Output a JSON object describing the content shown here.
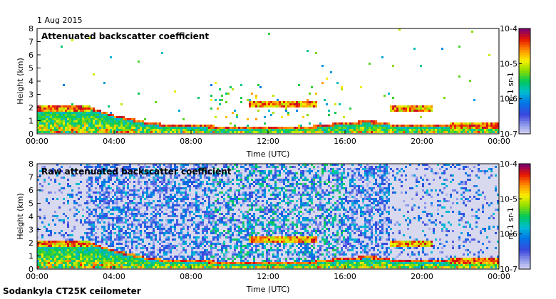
{
  "header": {
    "date": "1 Aug 2015"
  },
  "footer": {
    "instrument": "Sodankyla CT25K ceilometer"
  },
  "colors": {
    "background": "#ffffff",
    "no_data": "#d8d8ee",
    "axis": "#000000"
  },
  "chart_data": [
    {
      "type": "heatmap",
      "title": "Attenuated backscatter coefficient",
      "xlabel": "Time (UTC)",
      "ylabel": "Height (km)",
      "x_ticks": [
        "00:00",
        "04:00",
        "08:00",
        "12:00",
        "16:00",
        "20:00",
        "00:00"
      ],
      "x_range_hours": [
        0,
        24
      ],
      "y_ticks": [
        "0",
        "1",
        "2",
        "3",
        "4",
        "5",
        "6",
        "7",
        "8"
      ],
      "ylim_km": [
        0,
        8
      ],
      "colorbar": {
        "ticks": [
          "10-7",
          "10-6",
          "10-5",
          "10-4"
        ],
        "unit": "m-1 sr-1",
        "scale": "log",
        "range": [
          1e-07,
          0.0001
        ]
      },
      "boundary_layer_top_km": [
        [
          0,
          1.8
        ],
        [
          1,
          1.9
        ],
        [
          2,
          1.9
        ],
        [
          3,
          1.7
        ],
        [
          4,
          1.2
        ],
        [
          5,
          0.9
        ],
        [
          6,
          0.6
        ],
        [
          7,
          0.5
        ],
        [
          8,
          0.45
        ],
        [
          9,
          0.4
        ],
        [
          10,
          0.35
        ],
        [
          11,
          0.3
        ],
        [
          12,
          0.35
        ],
        [
          13,
          0.35
        ],
        [
          14,
          0.3
        ],
        [
          15,
          0.5
        ],
        [
          16,
          0.65
        ],
        [
          17,
          0.75
        ],
        [
          18,
          0.7
        ],
        [
          18.5,
          0.5
        ],
        [
          19,
          0.5
        ],
        [
          20,
          0.45
        ],
        [
          21,
          0.5
        ],
        [
          22,
          0.55
        ],
        [
          23,
          0.5
        ],
        [
          24,
          0.4
        ]
      ],
      "cloud_layers": [
        {
          "start_h": 0,
          "end_h": 2.8,
          "height_km": 1.9
        },
        {
          "start_h": 11.0,
          "end_h": 14.5,
          "height_km": 2.2
        },
        {
          "start_h": 18.3,
          "end_h": 20.5,
          "height_km": 1.9
        },
        {
          "start_h": 21.5,
          "end_h": 24,
          "height_km": 0.55
        }
      ],
      "noise_filtered": true
    },
    {
      "type": "heatmap",
      "title": "Raw attenuated backscatter coefficient",
      "xlabel": "Time (UTC)",
      "ylabel": "Height (km)",
      "x_ticks": [
        "00:00",
        "04:00",
        "08:00",
        "12:00",
        "16:00",
        "20:00",
        "00:00"
      ],
      "x_range_hours": [
        0,
        24
      ],
      "y_ticks": [
        "0",
        "1",
        "2",
        "3",
        "4",
        "5",
        "6",
        "7",
        "8"
      ],
      "ylim_km": [
        0,
        8
      ],
      "colorbar": {
        "ticks": [
          "10-7",
          "10-6",
          "10-5",
          "10-4"
        ],
        "unit": "m-1 sr-1",
        "scale": "log",
        "range": [
          1e-07,
          0.0001
        ]
      },
      "boundary_layer_top_km": [
        [
          0,
          1.8
        ],
        [
          1,
          1.9
        ],
        [
          2,
          1.9
        ],
        [
          3,
          1.7
        ],
        [
          4,
          1.2
        ],
        [
          5,
          0.9
        ],
        [
          6,
          0.6
        ],
        [
          7,
          0.5
        ],
        [
          8,
          0.45
        ],
        [
          9,
          0.4
        ],
        [
          10,
          0.35
        ],
        [
          11,
          0.3
        ],
        [
          12,
          0.35
        ],
        [
          13,
          0.35
        ],
        [
          14,
          0.3
        ],
        [
          15,
          0.5
        ],
        [
          16,
          0.65
        ],
        [
          17,
          0.75
        ],
        [
          18,
          0.7
        ],
        [
          18.5,
          0.5
        ],
        [
          19,
          0.5
        ],
        [
          20,
          0.45
        ],
        [
          21,
          0.5
        ],
        [
          22,
          0.55
        ],
        [
          23,
          0.5
        ],
        [
          24,
          0.4
        ]
      ],
      "cloud_layers": [
        {
          "start_h": 0,
          "end_h": 2.8,
          "height_km": 1.9
        },
        {
          "start_h": 11.0,
          "end_h": 14.5,
          "height_km": 2.2
        },
        {
          "start_h": 18.3,
          "end_h": 20.5,
          "height_km": 1.9
        },
        {
          "start_h": 21.5,
          "end_h": 24,
          "height_km": 0.55
        }
      ],
      "noise_filtered": false
    }
  ]
}
